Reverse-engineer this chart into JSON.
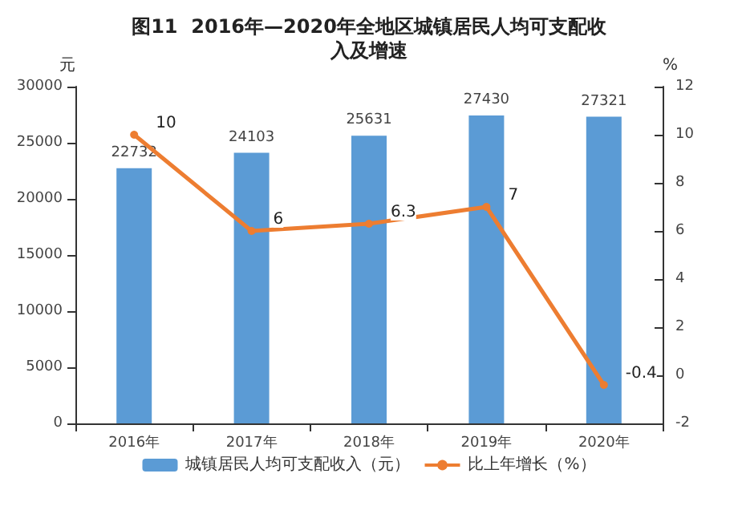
{
  "chart_data": {
    "type": "bar",
    "title": "图11  2016年—2020年全地区城镇居民人均可支配收入及增速",
    "ylabel": "元",
    "y2label": "%",
    "categories": [
      "2016年",
      "2017年",
      "2018年",
      "2019年",
      "2020年"
    ],
    "series": [
      {
        "name": "城镇居民人均可支配收入（元）",
        "color": "#5b9bd5",
        "values": [
          22732,
          24103,
          25631,
          27430,
          27321
        ]
      },
      {
        "name": "比上年增长（%）",
        "type": "line",
        "axis": "y2",
        "color": "#ed7d31",
        "marker": "circle",
        "values": [
          10,
          6,
          6.3,
          7,
          -0.4
        ]
      }
    ],
    "ylim": [
      0,
      30000
    ],
    "yticks": [
      0,
      5000,
      10000,
      15000,
      20000,
      25000,
      30000
    ],
    "y2lim": [
      -2,
      12
    ],
    "y2ticks": [
      -2,
      0,
      2,
      4,
      6,
      8,
      10,
      12
    ],
    "data_labels": true,
    "grid": false,
    "legend": "bottom"
  }
}
